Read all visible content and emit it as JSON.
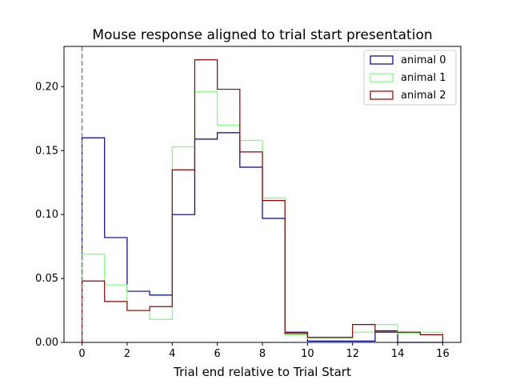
{
  "chart_data": {
    "type": "histogram-step",
    "title": "Mouse response aligned to trial start presentation",
    "xlabel": "Trial end relative to Trial Start",
    "ylabel": "",
    "xlim": [
      -0.8,
      16.8
    ],
    "ylim": [
      0,
      0.2315
    ],
    "xticks": [
      0,
      2,
      4,
      6,
      8,
      10,
      12,
      14,
      16
    ],
    "yticks": [
      0.0,
      0.05,
      0.1,
      0.15,
      0.2
    ],
    "ytick_labels": [
      "0.00",
      "0.05",
      "0.10",
      "0.15",
      "0.20"
    ],
    "bin_edges": [
      0,
      1,
      2,
      3,
      4,
      5,
      6,
      7,
      8,
      9,
      10,
      11,
      12,
      13,
      14,
      15,
      16
    ],
    "reference_line": {
      "x": 0,
      "style": "dashed",
      "color": "#808080"
    },
    "legend_position": "top-right",
    "grid": false,
    "series": [
      {
        "name": "animal 0",
        "color": "#00008b",
        "values": [
          0.16,
          0.082,
          0.04,
          0.037,
          0.1,
          0.159,
          0.164,
          0.137,
          0.097,
          0.008,
          0.001,
          0.001,
          0.001,
          0.009,
          0.0,
          0.0
        ]
      },
      {
        "name": "animal 1",
        "color": "#7cfc7c",
        "values": [
          0.069,
          0.045,
          0.025,
          0.018,
          0.153,
          0.196,
          0.17,
          0.158,
          0.113,
          0.006,
          0.003,
          0.003,
          0.008,
          0.014,
          0.007,
          0.008
        ]
      },
      {
        "name": "animal 2",
        "color": "#8b0000",
        "values": [
          0.048,
          0.032,
          0.025,
          0.028,
          0.135,
          0.221,
          0.198,
          0.149,
          0.111,
          0.007,
          0.004,
          0.004,
          0.014,
          0.008,
          0.008,
          0.006
        ]
      }
    ]
  }
}
